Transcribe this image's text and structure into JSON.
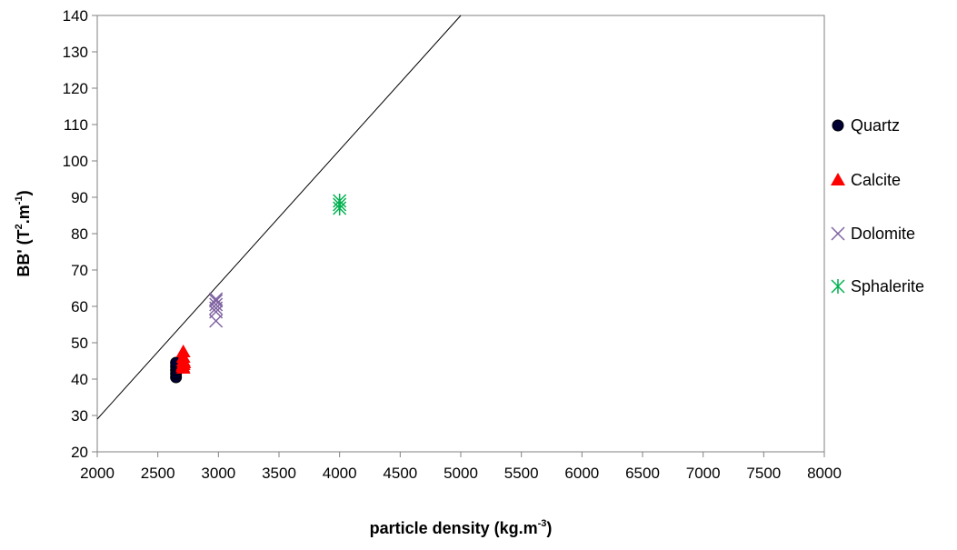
{
  "chart_data": {
    "type": "scatter",
    "title": "",
    "xlabel": {
      "main": "particle density (kg.m",
      "sup": "-3",
      "tail": ")"
    },
    "ylabel": {
      "main": "BB' (T",
      "sup1": "2",
      "mid": ".m",
      "sup2": "-1",
      "tail": ")"
    },
    "xlim": [
      2000,
      8000
    ],
    "ylim": [
      20,
      140
    ],
    "xticks": [
      2000,
      2500,
      3000,
      3500,
      4000,
      4500,
      5000,
      5500,
      6000,
      6500,
      7000,
      7500,
      8000
    ],
    "yticks": [
      20,
      30,
      40,
      50,
      60,
      70,
      80,
      90,
      100,
      110,
      120,
      130,
      140
    ],
    "grid": false,
    "legend_position": "right",
    "series": [
      {
        "name": "Quartz",
        "marker": "circle",
        "color": "#000033",
        "points": [
          [
            2650,
            40.5
          ],
          [
            2650,
            41.5
          ],
          [
            2650,
            42.5
          ],
          [
            2650,
            43.5
          ],
          [
            2650,
            44.5
          ]
        ]
      },
      {
        "name": "Calcite",
        "marker": "triangle",
        "color": "#ff0000",
        "points": [
          [
            2710,
            43
          ],
          [
            2710,
            44
          ],
          [
            2710,
            45
          ],
          [
            2710,
            46
          ],
          [
            2710,
            47.5
          ],
          [
            2705,
            43.5
          ],
          [
            2715,
            44.5
          ]
        ]
      },
      {
        "name": "Dolomite",
        "marker": "x",
        "color": "#8064a2",
        "points": [
          [
            2980,
            56
          ],
          [
            2980,
            58.5
          ],
          [
            2980,
            59.5
          ],
          [
            2980,
            60.5
          ],
          [
            2980,
            61.5
          ],
          [
            2980,
            62
          ]
        ]
      },
      {
        "name": "Sphalerite",
        "marker": "asterisk",
        "color": "#00b050",
        "points": [
          [
            4000,
            87
          ],
          [
            4000,
            88
          ],
          [
            4000,
            89
          ]
        ]
      }
    ],
    "reference_line": {
      "points": [
        [
          2000,
          29
        ],
        [
          5000,
          140
        ]
      ],
      "color": "#000000"
    }
  }
}
